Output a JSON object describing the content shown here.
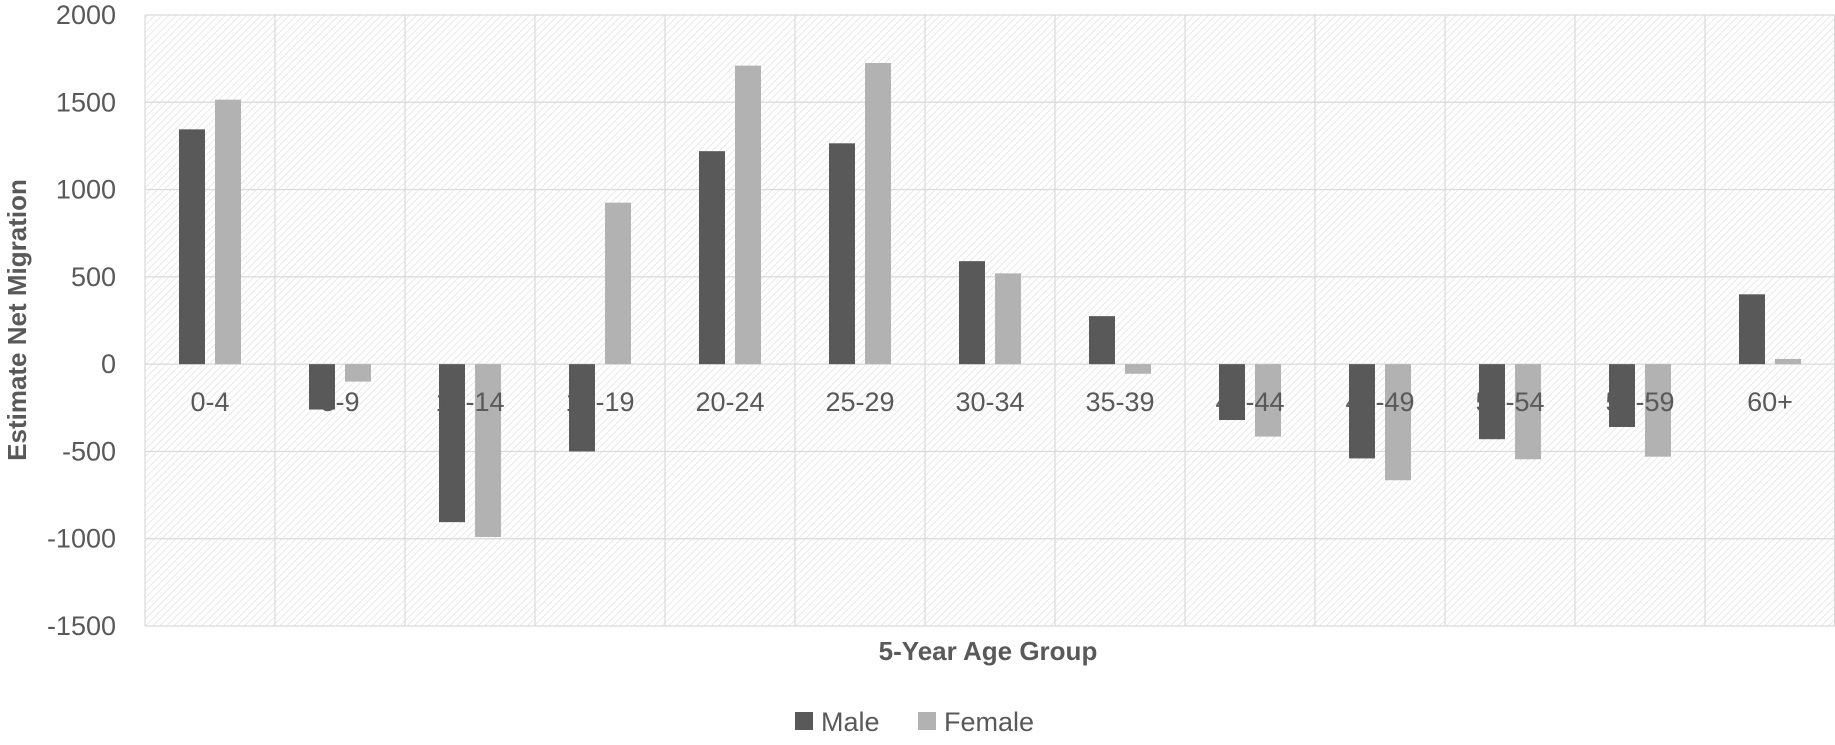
{
  "chart_data": {
    "type": "bar",
    "title": "",
    "xlabel": "5-Year Age Group",
    "ylabel": "Estimate Net Migration",
    "categories": [
      "0-4",
      "5-9",
      "10-14",
      "15-19",
      "20-24",
      "25-29",
      "30-34",
      "35-39",
      "40-44",
      "45-49",
      "50-54",
      "55-59",
      "60+"
    ],
    "series": [
      {
        "name": "Male",
        "color": "#595959",
        "values": [
          1345,
          -260,
          -905,
          -500,
          1220,
          1265,
          590,
          275,
          -320,
          -540,
          -430,
          -360,
          400
        ]
      },
      {
        "name": "Female",
        "color": "#b2b2b2",
        "values": [
          1515,
          -100,
          -990,
          925,
          1710,
          1725,
          520,
          -55,
          -415,
          -665,
          -545,
          -530,
          30
        ]
      }
    ],
    "ylim": [
      -1500,
      2000
    ],
    "yticks": [
      2000,
      1500,
      1000,
      500,
      0,
      -500,
      -1000,
      -1500
    ],
    "grid": true,
    "legend": "bottom-center"
  }
}
